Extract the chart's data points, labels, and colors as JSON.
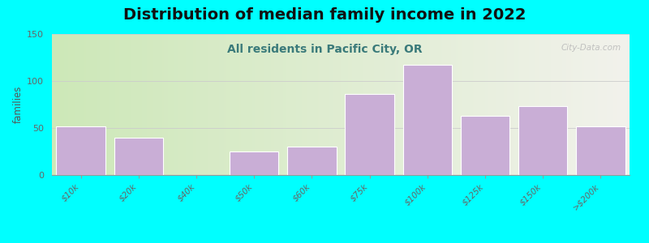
{
  "title": "Distribution of median family income in 2022",
  "subtitle": "All residents in Pacific City, OR",
  "xlabel": "",
  "ylabel": "families",
  "categories": [
    "$10k",
    "$20k",
    "$40k",
    "$50k",
    "$60k",
    "$75k",
    "$100k",
    "$125k",
    "$150k",
    ">$200k"
  ],
  "values": [
    52,
    40,
    0,
    25,
    30,
    86,
    117,
    63,
    73,
    52
  ],
  "bar_color": "#c9aed6",
  "bar_edge_color": "#ffffff",
  "ylim": [
    0,
    150
  ],
  "yticks": [
    0,
    50,
    100,
    150
  ],
  "background_outer": "#00FFFF",
  "plot_bg_left": "#cde8b8",
  "plot_bg_right": "#f2f2ec",
  "title_fontsize": 14,
  "subtitle_fontsize": 10,
  "title_color": "#111111",
  "subtitle_color": "#3a7a7a",
  "watermark_text": "City-Data.com",
  "watermark_color": "#b8b8b8",
  "tick_color": "#666666",
  "grid_color": "#cccccc",
  "ylabel_color": "#555555"
}
